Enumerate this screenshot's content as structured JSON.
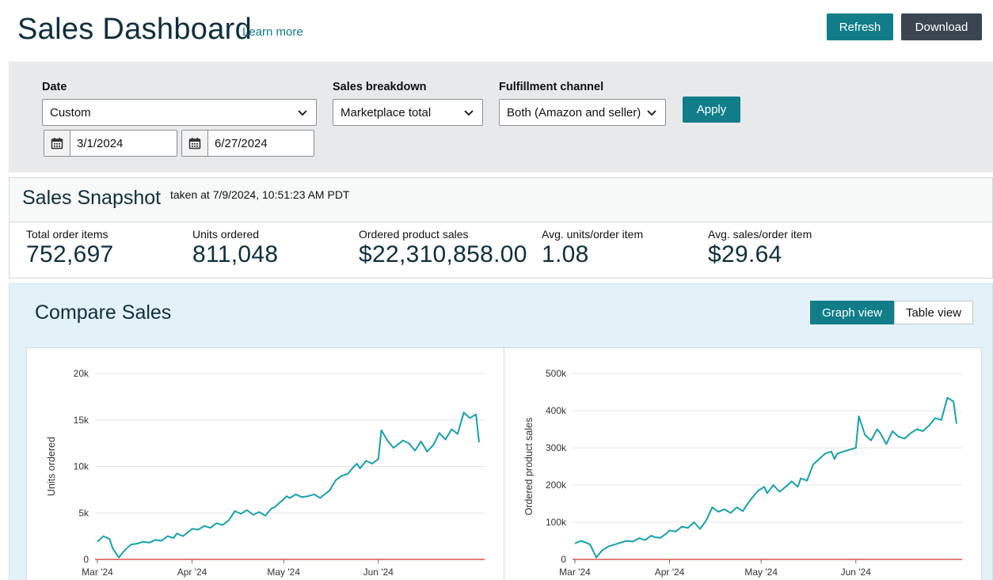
{
  "header": {
    "title": "Sales Dashboard",
    "learn_more": "Learn more",
    "refresh_label": "Refresh",
    "download_label": "Download"
  },
  "filters": {
    "date_label": "Date",
    "date_value": "Custom",
    "start_date": "3/1/2024",
    "end_date": "6/27/2024",
    "breakdown_label": "Sales breakdown",
    "breakdown_value": "Marketplace total",
    "channel_label": "Fulfillment channel",
    "channel_value": "Both (Amazon and seller)",
    "apply_label": "Apply"
  },
  "snapshot": {
    "title": "Sales Snapshot",
    "taken_at": "taken at 7/9/2024, 10:51:23 AM PDT",
    "metrics": [
      {
        "label": "Total order items",
        "value": "752,697"
      },
      {
        "label": "Units ordered",
        "value": "811,048"
      },
      {
        "label": "Ordered product sales",
        "value": "$22,310,858.00"
      },
      {
        "label": "Avg. units/order item",
        "value": "1.08"
      },
      {
        "label": "Avg. sales/order item",
        "value": "$29.64"
      }
    ]
  },
  "compare": {
    "title": "Compare Sales",
    "graph_view_label": "Graph view",
    "table_view_label": "Table view"
  },
  "colors": {
    "accent": "#107d89",
    "line": "#16a0ac",
    "baseline": "#d9534f",
    "dark_button": "#3b4551"
  },
  "chart_data": [
    {
      "type": "line",
      "ylabel": "Units ordered",
      "ylim": [
        0,
        20000
      ],
      "yticks": [
        "0",
        "5k",
        "10k",
        "15k",
        "20k"
      ],
      "xticks": [
        "Mar '24",
        "Apr '24",
        "May '24",
        "Jun '24"
      ],
      "xtick_days": [
        0,
        31,
        61,
        92
      ],
      "x_days": [
        0,
        2,
        4,
        5,
        7,
        8,
        9,
        11,
        13,
        15,
        17,
        19,
        21,
        23,
        25,
        26,
        28,
        30,
        31,
        33,
        35,
        37,
        39,
        41,
        43,
        45,
        47,
        49,
        51,
        53,
        55,
        57,
        58,
        60,
        62,
        63,
        65,
        67,
        69,
        71,
        73,
        74,
        76,
        78,
        80,
        82,
        84,
        85,
        86,
        88,
        90,
        92,
        93,
        95,
        97,
        99,
        100,
        102,
        104,
        106,
        108,
        110,
        112,
        114,
        116,
        118,
        120,
        122,
        124,
        125
      ],
      "series": [
        {
          "name": "",
          "values": [
            1900,
            2500,
            2200,
            1200,
            200,
            600,
            1000,
            1600,
            1700,
            1900,
            1800,
            2100,
            2000,
            2500,
            2300,
            2800,
            2500,
            3000,
            3300,
            3200,
            3600,
            3400,
            3900,
            3700,
            4200,
            5200,
            4900,
            5300,
            4800,
            5100,
            4700,
            5500,
            5600,
            6200,
            6800,
            6600,
            7000,
            6700,
            6800,
            7000,
            6600,
            6900,
            7400,
            8500,
            9000,
            9200,
            10000,
            10300,
            9800,
            10600,
            10300,
            10800,
            13900,
            12800,
            12000,
            12500,
            12800,
            12500,
            11700,
            12700,
            11600,
            12300,
            13600,
            12900,
            14000,
            13500,
            15800,
            15200,
            15600,
            12600
          ]
        }
      ]
    },
    {
      "type": "line",
      "ylabel": "Ordered product sales",
      "ylim": [
        0,
        500000
      ],
      "yticks": [
        "0",
        "100k",
        "200k",
        "300k",
        "400k",
        "500k"
      ],
      "xticks": [
        "Mar '24",
        "Apr '24",
        "May '24",
        "Jun '24"
      ],
      "xtick_days": [
        0,
        31,
        61,
        92
      ],
      "x_days": [
        0,
        2,
        4,
        5,
        7,
        8,
        9,
        11,
        13,
        15,
        17,
        19,
        21,
        23,
        25,
        26,
        28,
        30,
        31,
        33,
        35,
        37,
        39,
        41,
        43,
        45,
        47,
        49,
        51,
        53,
        55,
        57,
        58,
        60,
        62,
        63,
        65,
        67,
        69,
        71,
        73,
        74,
        76,
        78,
        80,
        82,
        84,
        85,
        86,
        88,
        90,
        92,
        93,
        95,
        97,
        99,
        100,
        102,
        104,
        106,
        108,
        110,
        112,
        114,
        116,
        118,
        120,
        122,
        124,
        125
      ],
      "series": [
        {
          "name": "",
          "values": [
            43000,
            50000,
            44000,
            40000,
            5000,
            15000,
            25000,
            35000,
            40000,
            45000,
            50000,
            48000,
            57000,
            52000,
            64000,
            60000,
            58000,
            70000,
            78000,
            75000,
            88000,
            85000,
            100000,
            82000,
            105000,
            140000,
            128000,
            135000,
            125000,
            140000,
            130000,
            155000,
            165000,
            185000,
            195000,
            178000,
            200000,
            182000,
            195000,
            210000,
            195000,
            218000,
            212000,
            255000,
            270000,
            285000,
            290000,
            270000,
            285000,
            290000,
            295000,
            300000,
            385000,
            335000,
            320000,
            350000,
            340000,
            310000,
            345000,
            330000,
            325000,
            340000,
            350000,
            345000,
            360000,
            380000,
            375000,
            435000,
            425000,
            365000
          ]
        }
      ]
    }
  ]
}
